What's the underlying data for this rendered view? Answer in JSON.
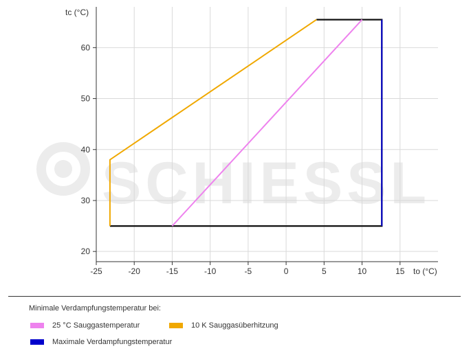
{
  "watermark": "SCHIESSL",
  "chart_data": {
    "type": "line",
    "xlabel": "to (°C)",
    "ylabel": "tc (°C)",
    "xlim": [
      -25,
      20
    ],
    "ylim": [
      18,
      68
    ],
    "xticks": [
      -25,
      -20,
      -15,
      -10,
      -5,
      0,
      5,
      10,
      15
    ],
    "yticks": [
      20,
      30,
      40,
      50,
      60
    ],
    "grid": true,
    "legend_title": "Minimale Verdampfungstemperatur bei:",
    "series": [
      {
        "name": "25 °C Sauggastemperatur",
        "color": "#ee82ee",
        "x": [
          -15,
          10
        ],
        "y": [
          25,
          65.5
        ]
      },
      {
        "name": "10 K Sauggasüberhitzung",
        "color": "#f0a800",
        "x": [
          -23.2,
          -23.2,
          4
        ],
        "y": [
          25,
          38,
          65.5
        ]
      },
      {
        "name": "Maximale Verdampfungstemperatur",
        "color": "#0000cc",
        "x": [
          12.6,
          12.6
        ],
        "y": [
          25,
          65.5
        ]
      }
    ],
    "boundary": {
      "color": "#111111",
      "x": [
        -23.2,
        12.6,
        12.6,
        4
      ],
      "y": [
        25,
        25,
        65.5,
        65.5
      ]
    }
  }
}
